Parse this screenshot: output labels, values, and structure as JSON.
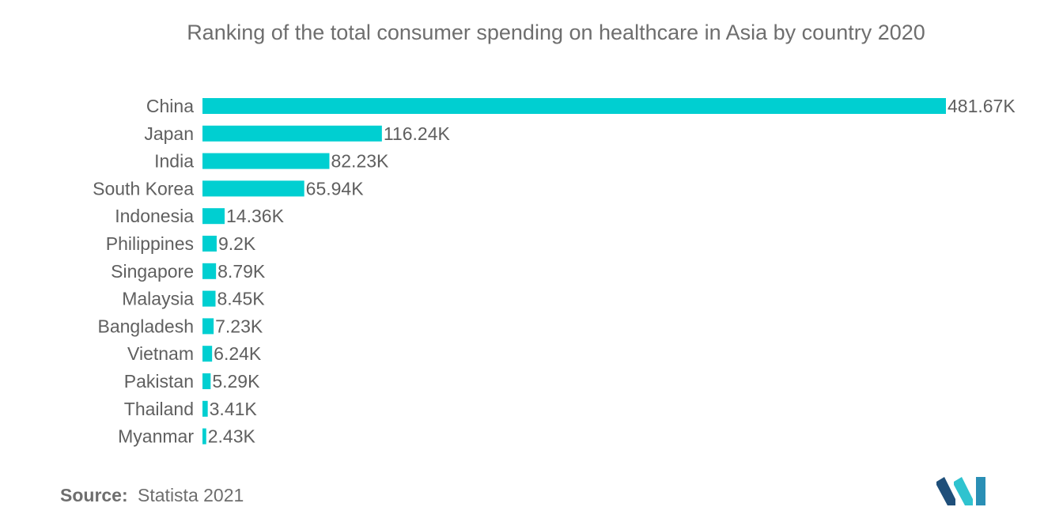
{
  "chart_data": {
    "type": "bar",
    "orientation": "horizontal",
    "title": "Ranking of the total consumer spending on healthcare in Asia by country 2020",
    "categories": [
      "China",
      "Japan",
      "India",
      "South Korea",
      "Indonesia",
      "Philippines",
      "Singapore",
      "Malaysia",
      "Bangladesh",
      "Vietnam",
      "Pakistan",
      "Thailand",
      "Myanmar"
    ],
    "values": [
      481.67,
      116.24,
      82.23,
      65.94,
      14.36,
      9.2,
      8.79,
      8.45,
      7.23,
      6.24,
      5.29,
      3.41,
      2.43
    ],
    "value_labels": [
      "481.67K",
      "116.24K",
      "82.23K",
      "65.94K",
      "14.36K",
      "9.2K",
      "8.79K",
      "8.45K",
      "7.23K",
      "6.24K",
      "5.29K",
      "3.41K",
      "2.43K"
    ],
    "xlim": [
      0,
      481.67
    ],
    "bar_color": "#00cfd1",
    "grid": false,
    "legend": "none"
  },
  "source": {
    "label": "Source:",
    "text": "Statista 2021"
  },
  "logo": {
    "icon": "mordor-intelligence-logo",
    "colors": [
      "#1f4f7a",
      "#2fc3cf"
    ]
  }
}
